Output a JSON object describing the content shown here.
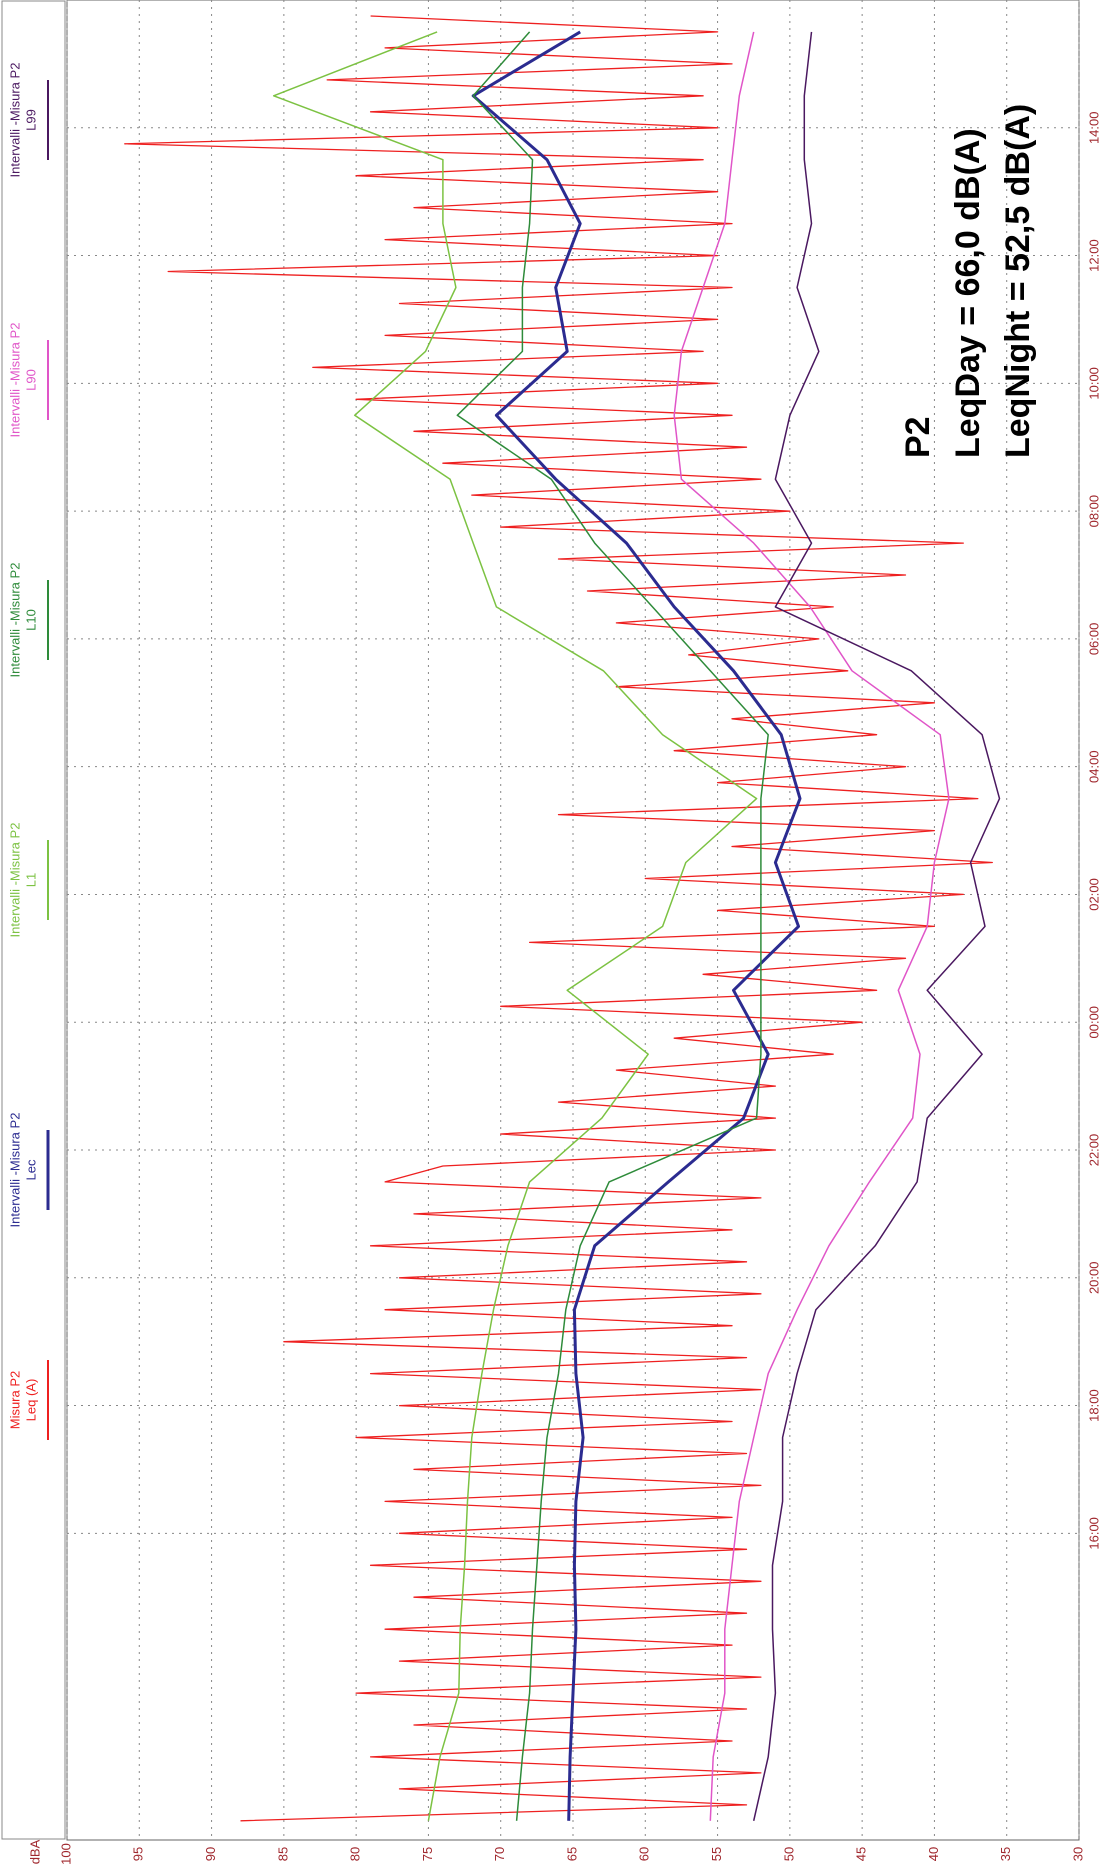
{
  "chart_data": {
    "type": "line",
    "ylabel": "dBA",
    "annotations": [
      "P2",
      "LeqDay = 66,0 dB(A)",
      "LeqNight = 52,5 dB(A)"
    ],
    "xlim": [
      11.2,
      40
    ],
    "xticks": [
      {
        "value": 16,
        "label": "16:00"
      },
      {
        "value": 18,
        "label": "18:00"
      },
      {
        "value": 20,
        "label": "20:00"
      },
      {
        "value": 22,
        "label": "22:00"
      },
      {
        "value": 24,
        "label": "00:00"
      },
      {
        "value": 26,
        "label": "02:00"
      },
      {
        "value": 28,
        "label": "04:00"
      },
      {
        "value": 30,
        "label": "06:00"
      },
      {
        "value": 32,
        "label": "08:00"
      },
      {
        "value": 34,
        "label": "10:00"
      },
      {
        "value": 36,
        "label": "12:00"
      },
      {
        "value": 38,
        "label": "14:00"
      }
    ],
    "ylim": [
      30,
      100
    ],
    "yticks": [
      30,
      35,
      40,
      45,
      50,
      55,
      60,
      65,
      70,
      75,
      80,
      85,
      90,
      95,
      100
    ],
    "grid": true,
    "series": [
      {
        "source": "Misura P2",
        "name": "Leq (A)",
        "color": "#ee2020",
        "width": 1.3,
        "x": [
          11.5,
          11.75,
          12,
          12.25,
          12.5,
          12.75,
          13,
          13.25,
          13.5,
          13.75,
          14,
          14.25,
          14.5,
          14.75,
          15,
          15.25,
          15.5,
          15.75,
          16,
          16.25,
          16.5,
          16.75,
          17,
          17.25,
          17.5,
          17.75,
          18,
          18.25,
          18.5,
          18.75,
          19,
          19.25,
          19.5,
          19.75,
          20,
          20.25,
          20.5,
          20.75,
          21,
          21.25,
          21.5,
          21.75,
          22,
          22.25,
          22.5,
          22.75,
          23,
          23.25,
          23.5,
          23.75,
          24,
          24.25,
          24.5,
          24.75,
          25,
          25.25,
          25.5,
          25.75,
          26,
          26.25,
          26.5,
          26.75,
          27,
          27.25,
          27.5,
          27.75,
          28,
          28.25,
          28.5,
          28.75,
          29,
          29.25,
          29.5,
          29.75,
          30,
          30.25,
          30.5,
          30.75,
          31,
          31.25,
          31.5,
          31.75,
          32,
          32.25,
          32.5,
          32.75,
          33,
          33.25,
          33.5,
          33.75,
          34,
          34.25,
          34.5,
          34.75,
          35,
          35.25,
          35.5,
          35.75,
          36,
          36.25,
          36.5,
          36.75,
          37,
          37.25,
          37.5,
          37.75,
          38,
          38.25,
          38.5,
          38.75,
          39,
          39.25,
          39.5,
          39.75
        ],
        "values": [
          88,
          53,
          77,
          52,
          79,
          54,
          76,
          53,
          80,
          52,
          77,
          54,
          78,
          53,
          76,
          52,
          79,
          53,
          77,
          54,
          78,
          52,
          76,
          53,
          80,
          54,
          77,
          52,
          79,
          53,
          85,
          54,
          78,
          52,
          77,
          53,
          79,
          54,
          76,
          52,
          78,
          74,
          51,
          70,
          51,
          66,
          51,
          62,
          47,
          58,
          45,
          70,
          44,
          56,
          42,
          68,
          40,
          55,
          38,
          60,
          36,
          54,
          40,
          66,
          37,
          55,
          42,
          58,
          44,
          54,
          40,
          62,
          46,
          57,
          48,
          62,
          47,
          64,
          42,
          66,
          38,
          70,
          50,
          72,
          52,
          74,
          53,
          76,
          54,
          80,
          55,
          83,
          56,
          78,
          55,
          77,
          54,
          93,
          55,
          78,
          54,
          76,
          55,
          80,
          56,
          96,
          55,
          79,
          56,
          82,
          54,
          78,
          55,
          79
        ]
      },
      {
        "source": "Intervalli -Misura P2",
        "name": "Lec",
        "color": "#2b2b90",
        "width": 3,
        "x": [
          11.5,
          12.5,
          13.5,
          14.5,
          15.5,
          16.5,
          17.5,
          18.5,
          19.5,
          20.5,
          21.5,
          22.5,
          23.5,
          24.5,
          25.5,
          26.5,
          27.5,
          28.5,
          29.5,
          30.5,
          31.5,
          32.5,
          33.5,
          34.5,
          35.5,
          36.5,
          37.5,
          38.5,
          39.5
        ],
        "values": [
          65.3,
          65.2,
          65.0,
          64.8,
          64.9,
          64.8,
          64.3,
          64.8,
          64.9,
          63.5,
          58.4,
          53.2,
          51.5,
          53.9,
          49.4,
          51.0,
          49.3,
          50.6,
          53.9,
          58.0,
          61.3,
          66.2,
          70.3,
          65.4,
          66.2,
          64.5,
          66.8,
          71.9,
          64.5
        ]
      },
      {
        "source": "Intervalli -Misura P2",
        "name": "L1",
        "color": "#7cc242",
        "width": 1.5,
        "x": [
          11.5,
          12.5,
          13.5,
          14.5,
          15.5,
          16.5,
          17.5,
          18.5,
          19.5,
          20.5,
          21.5,
          22.5,
          23.5,
          24.5,
          25.5,
          26.5,
          27.5,
          28.5,
          29.5,
          30.5,
          31.5,
          32.5,
          33.5,
          34.5,
          35.5,
          36.5,
          37.5,
          38.5,
          39.5
        ],
        "values": [
          75.0,
          74.2,
          72.9,
          72.8,
          72.5,
          72.3,
          72.0,
          71.3,
          70.5,
          69.5,
          68.0,
          63.0,
          59.8,
          65.4,
          58.8,
          57.2,
          52.3,
          58.8,
          62.9,
          70.3,
          71.9,
          73.5,
          80.1,
          75.2,
          73.1,
          74.0,
          74.0,
          85.7,
          74.4
        ]
      },
      {
        "source": "Intervalli -Misura P2",
        "name": "L10",
        "color": "#2e8b3a",
        "width": 1.5,
        "x": [
          11.5,
          12.5,
          13.5,
          14.5,
          15.5,
          16.5,
          17.5,
          18.5,
          19.5,
          20.5,
          21.5,
          22.5,
          23.5,
          24.5,
          25.5,
          26.5,
          27.5,
          28.5,
          29.5,
          30.5,
          31.5,
          32.5,
          33.5,
          34.5,
          35.5,
          36.5,
          37.5,
          38.5,
          39.5
        ],
        "values": [
          68.9,
          68.5,
          68.0,
          67.8,
          67.5,
          67.2,
          66.8,
          66.0,
          65.5,
          64.5,
          62.5,
          52.3,
          52.0,
          52.0,
          52.0,
          52.0,
          52.0,
          51.5,
          55.5,
          59.5,
          63.5,
          66.5,
          73.0,
          68.5,
          68.5,
          68.0,
          67.8,
          71.9,
          68.0
        ]
      },
      {
        "source": "Intervalli -Misura P2",
        "name": "L90",
        "color": "#e055c8",
        "width": 1.5,
        "x": [
          11.5,
          12.5,
          13.5,
          14.5,
          15.5,
          16.5,
          17.5,
          18.5,
          19.5,
          20.5,
          21.5,
          22.5,
          23.5,
          24.5,
          25.5,
          26.5,
          27.5,
          28.5,
          29.5,
          30.5,
          31.5,
          32.5,
          33.5,
          34.5,
          35.5,
          36.5,
          37.5,
          38.5,
          39.5
        ],
        "values": [
          55.5,
          55.3,
          54.5,
          54.5,
          54.0,
          53.5,
          52.5,
          51.5,
          49.5,
          47.3,
          44.5,
          41.5,
          41.0,
          42.5,
          40.5,
          40.0,
          39.0,
          39.6,
          45.7,
          48.6,
          52.5,
          57.5,
          58.0,
          57.5,
          56.0,
          54.5,
          54.0,
          53.5,
          52.5
        ]
      },
      {
        "source": "Intervalli -Misura P2",
        "name": "L99",
        "color": "#4a1860",
        "width": 1.5,
        "x": [
          11.5,
          12.5,
          13.5,
          14.5,
          15.5,
          16.5,
          17.5,
          18.5,
          19.5,
          20.5,
          21.5,
          22.5,
          23.5,
          24.5,
          25.5,
          26.5,
          27.5,
          28.5,
          29.5,
          30.5,
          31.5,
          32.5,
          33.5,
          34.5,
          35.5,
          36.5,
          37.5,
          38.5,
          39.5
        ],
        "values": [
          52.5,
          51.5,
          51.0,
          51.2,
          51.2,
          50.5,
          50.5,
          49.5,
          48.2,
          44.1,
          41.2,
          40.5,
          36.7,
          40.5,
          36.5,
          37.5,
          35.5,
          36.7,
          41.6,
          51.0,
          48.5,
          51.0,
          50.0,
          48.0,
          49.5,
          48.5,
          49.0,
          49.0,
          48.5
        ]
      }
    ]
  }
}
